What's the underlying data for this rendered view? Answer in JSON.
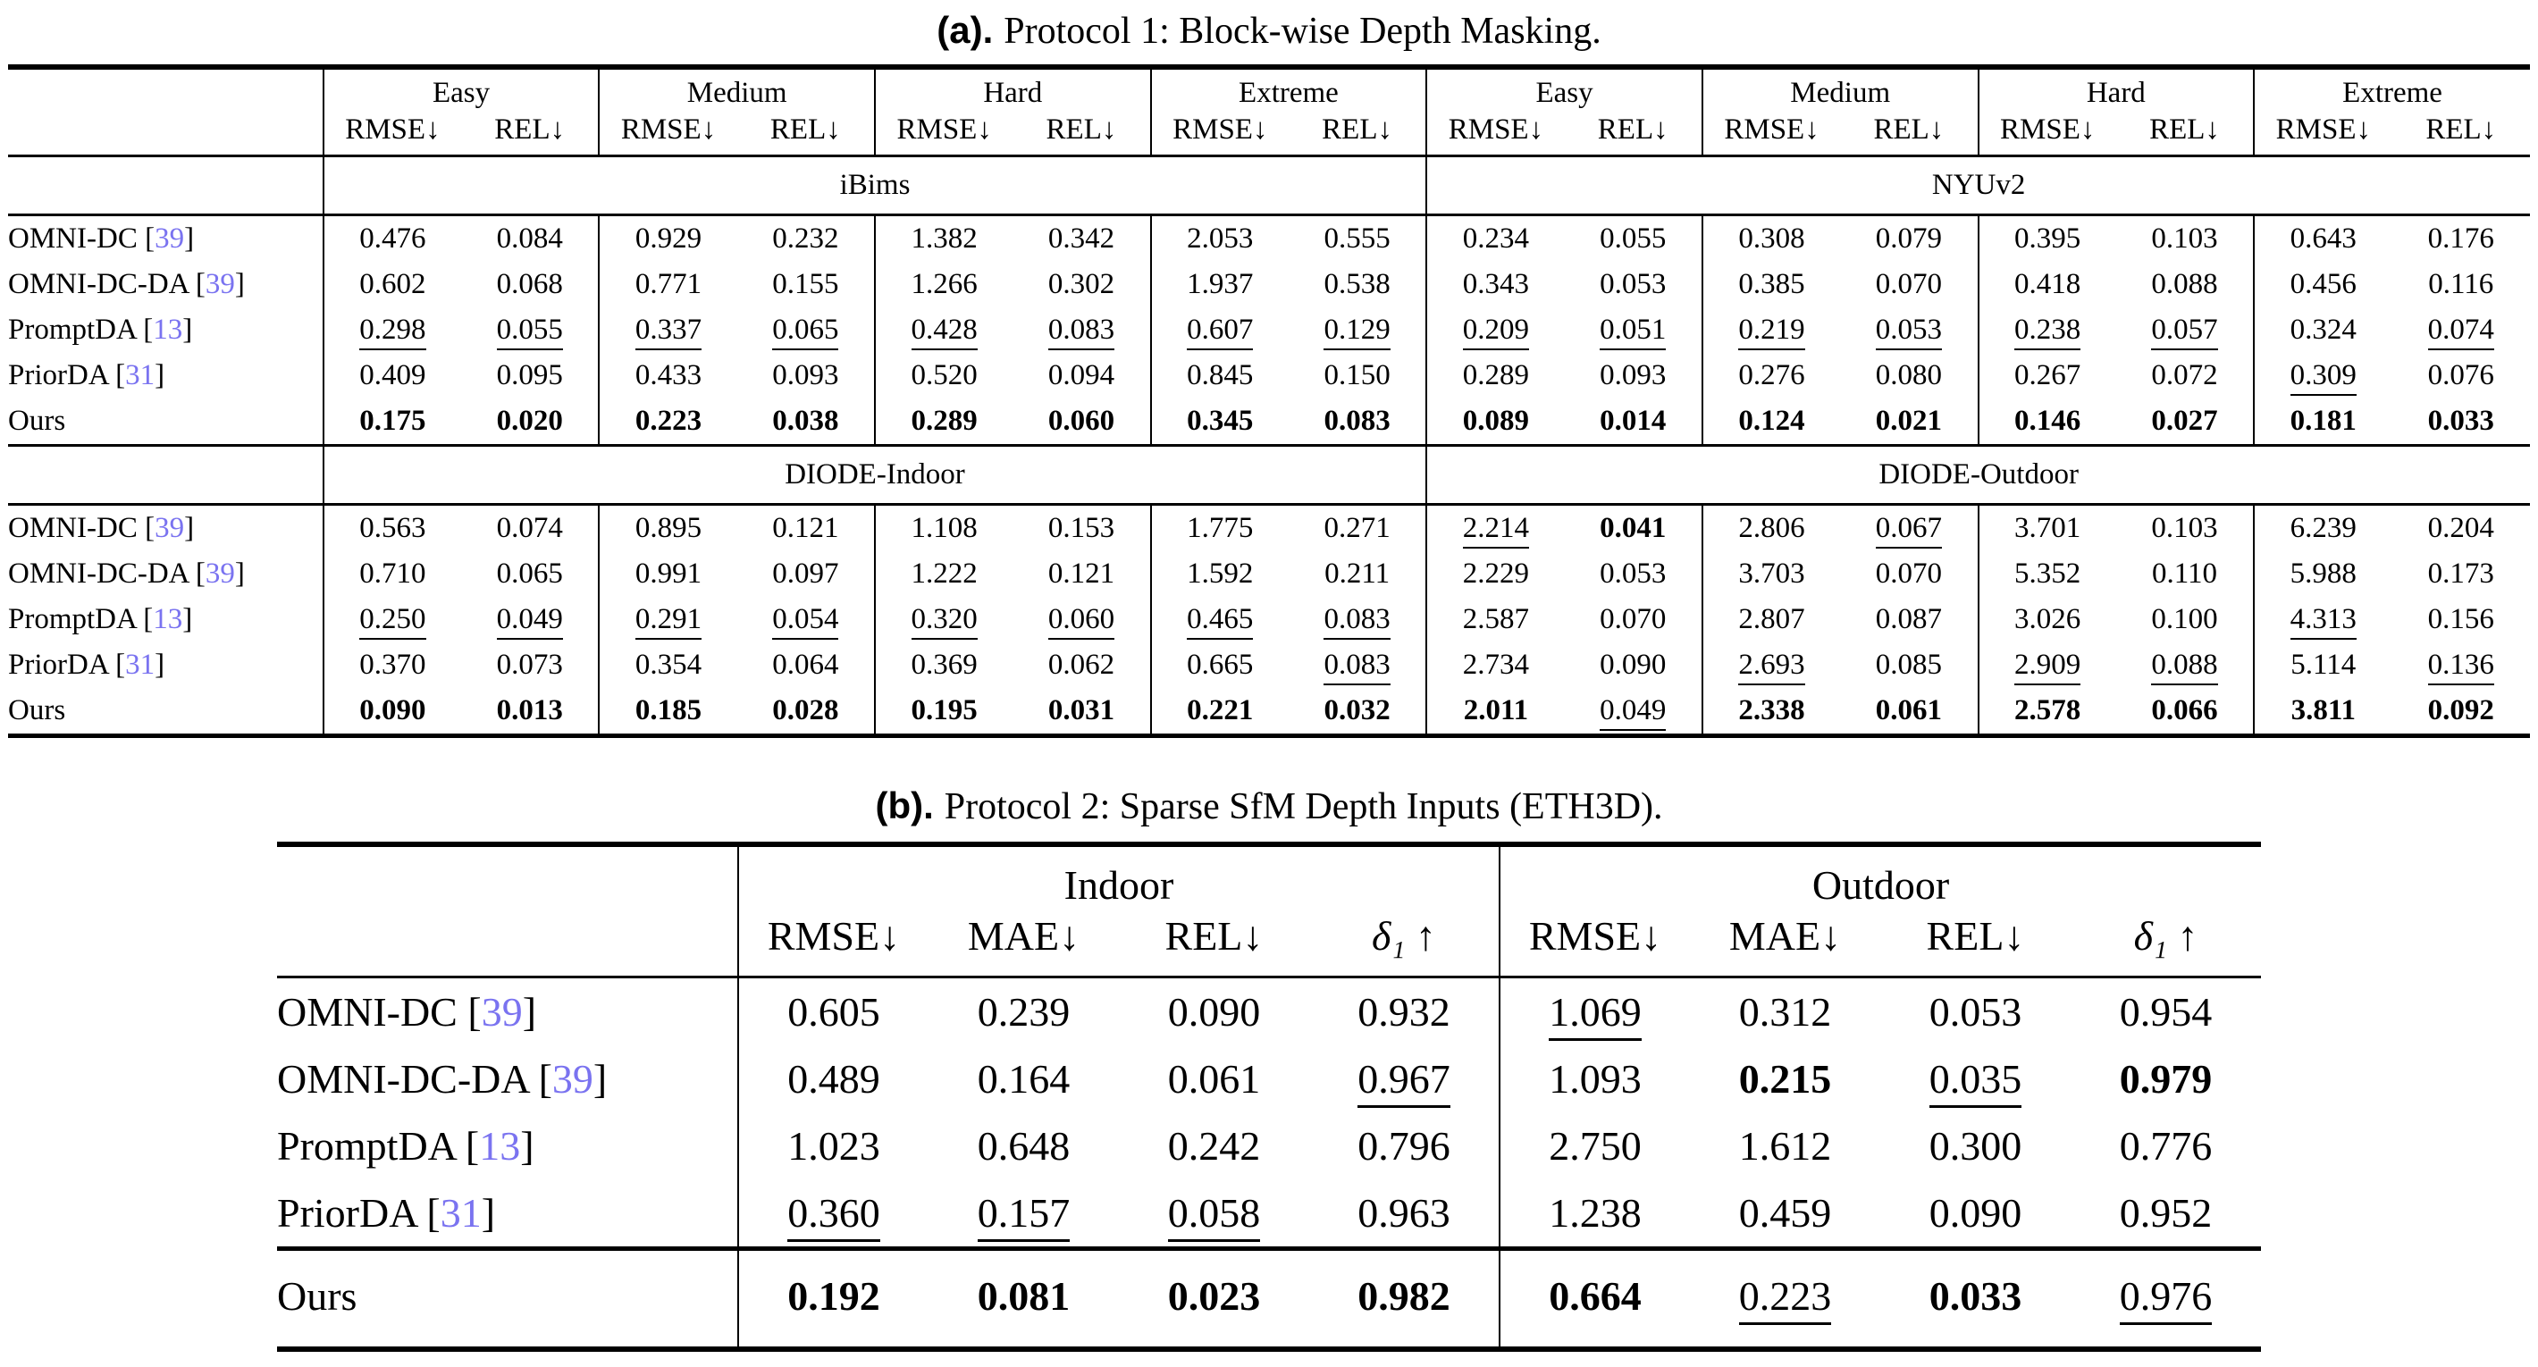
{
  "page": {
    "background": "#ffffff",
    "text_color": "#000000",
    "citation_color": "#7a73f0"
  },
  "emphasis_key": {
    "n": "normal",
    "b": "bold (best result)",
    "u": "underline (second-best result)"
  },
  "table_a": {
    "title": {
      "label": "(a).",
      "text": "Protocol 1: Block-wise Depth Masking."
    },
    "col_groups": [
      "Easy",
      "Medium",
      "Hard",
      "Extreme",
      "Easy",
      "Medium",
      "Hard",
      "Extreme"
    ],
    "metric_pair": [
      "RMSE↓",
      "REL↓"
    ],
    "sections": [
      {
        "bands": [
          "iBims",
          "NYUv2"
        ],
        "rows": [
          {
            "method": "OMNI-DC",
            "cite": "39",
            "cells": [
              [
                "0.476",
                "n"
              ],
              [
                "0.084",
                "n"
              ],
              [
                "0.929",
                "n"
              ],
              [
                "0.232",
                "n"
              ],
              [
                "1.382",
                "n"
              ],
              [
                "0.342",
                "n"
              ],
              [
                "2.053",
                "n"
              ],
              [
                "0.555",
                "n"
              ],
              [
                "0.234",
                "n"
              ],
              [
                "0.055",
                "n"
              ],
              [
                "0.308",
                "n"
              ],
              [
                "0.079",
                "n"
              ],
              [
                "0.395",
                "n"
              ],
              [
                "0.103",
                "n"
              ],
              [
                "0.643",
                "n"
              ],
              [
                "0.176",
                "n"
              ]
            ]
          },
          {
            "method": "OMNI-DC-DA",
            "cite": "39",
            "cells": [
              [
                "0.602",
                "n"
              ],
              [
                "0.068",
                "n"
              ],
              [
                "0.771",
                "n"
              ],
              [
                "0.155",
                "n"
              ],
              [
                "1.266",
                "n"
              ],
              [
                "0.302",
                "n"
              ],
              [
                "1.937",
                "n"
              ],
              [
                "0.538",
                "n"
              ],
              [
                "0.343",
                "n"
              ],
              [
                "0.053",
                "n"
              ],
              [
                "0.385",
                "n"
              ],
              [
                "0.070",
                "n"
              ],
              [
                "0.418",
                "n"
              ],
              [
                "0.088",
                "n"
              ],
              [
                "0.456",
                "n"
              ],
              [
                "0.116",
                "n"
              ]
            ]
          },
          {
            "method": "PromptDA",
            "cite": "13",
            "cells": [
              [
                "0.298",
                "u"
              ],
              [
                "0.055",
                "u"
              ],
              [
                "0.337",
                "u"
              ],
              [
                "0.065",
                "u"
              ],
              [
                "0.428",
                "u"
              ],
              [
                "0.083",
                "u"
              ],
              [
                "0.607",
                "u"
              ],
              [
                "0.129",
                "u"
              ],
              [
                "0.209",
                "u"
              ],
              [
                "0.051",
                "u"
              ],
              [
                "0.219",
                "u"
              ],
              [
                "0.053",
                "u"
              ],
              [
                "0.238",
                "u"
              ],
              [
                "0.057",
                "u"
              ],
              [
                "0.324",
                "n"
              ],
              [
                "0.074",
                "u"
              ]
            ]
          },
          {
            "method": "PriorDA",
            "cite": "31",
            "cells": [
              [
                "0.409",
                "n"
              ],
              [
                "0.095",
                "n"
              ],
              [
                "0.433",
                "n"
              ],
              [
                "0.093",
                "n"
              ],
              [
                "0.520",
                "n"
              ],
              [
                "0.094",
                "n"
              ],
              [
                "0.845",
                "n"
              ],
              [
                "0.150",
                "n"
              ],
              [
                "0.289",
                "n"
              ],
              [
                "0.093",
                "n"
              ],
              [
                "0.276",
                "n"
              ],
              [
                "0.080",
                "n"
              ],
              [
                "0.267",
                "n"
              ],
              [
                "0.072",
                "n"
              ],
              [
                "0.309",
                "u"
              ],
              [
                "0.076",
                "n"
              ]
            ]
          },
          {
            "method": "Ours",
            "cite": null,
            "cells": [
              [
                "0.175",
                "b"
              ],
              [
                "0.020",
                "b"
              ],
              [
                "0.223",
                "b"
              ],
              [
                "0.038",
                "b"
              ],
              [
                "0.289",
                "b"
              ],
              [
                "0.060",
                "b"
              ],
              [
                "0.345",
                "b"
              ],
              [
                "0.083",
                "b"
              ],
              [
                "0.089",
                "b"
              ],
              [
                "0.014",
                "b"
              ],
              [
                "0.124",
                "b"
              ],
              [
                "0.021",
                "b"
              ],
              [
                "0.146",
                "b"
              ],
              [
                "0.027",
                "b"
              ],
              [
                "0.181",
                "b"
              ],
              [
                "0.033",
                "b"
              ]
            ]
          }
        ]
      },
      {
        "bands": [
          "DIODE-Indoor",
          "DIODE-Outdoor"
        ],
        "rows": [
          {
            "method": "OMNI-DC",
            "cite": "39",
            "cells": [
              [
                "0.563",
                "n"
              ],
              [
                "0.074",
                "n"
              ],
              [
                "0.895",
                "n"
              ],
              [
                "0.121",
                "n"
              ],
              [
                "1.108",
                "n"
              ],
              [
                "0.153",
                "n"
              ],
              [
                "1.775",
                "n"
              ],
              [
                "0.271",
                "n"
              ],
              [
                "2.214",
                "u"
              ],
              [
                "0.041",
                "b"
              ],
              [
                "2.806",
                "n"
              ],
              [
                "0.067",
                "u"
              ],
              [
                "3.701",
                "n"
              ],
              [
                "0.103",
                "n"
              ],
              [
                "6.239",
                "n"
              ],
              [
                "0.204",
                "n"
              ]
            ]
          },
          {
            "method": "OMNI-DC-DA",
            "cite": "39",
            "cells": [
              [
                "0.710",
                "n"
              ],
              [
                "0.065",
                "n"
              ],
              [
                "0.991",
                "n"
              ],
              [
                "0.097",
                "n"
              ],
              [
                "1.222",
                "n"
              ],
              [
                "0.121",
                "n"
              ],
              [
                "1.592",
                "n"
              ],
              [
                "0.211",
                "n"
              ],
              [
                "2.229",
                "n"
              ],
              [
                "0.053",
                "n"
              ],
              [
                "3.703",
                "n"
              ],
              [
                "0.070",
                "n"
              ],
              [
                "5.352",
                "n"
              ],
              [
                "0.110",
                "n"
              ],
              [
                "5.988",
                "n"
              ],
              [
                "0.173",
                "n"
              ]
            ]
          },
          {
            "method": "PromptDA",
            "cite": "13",
            "cells": [
              [
                "0.250",
                "u"
              ],
              [
                "0.049",
                "u"
              ],
              [
                "0.291",
                "u"
              ],
              [
                "0.054",
                "u"
              ],
              [
                "0.320",
                "u"
              ],
              [
                "0.060",
                "u"
              ],
              [
                "0.465",
                "u"
              ],
              [
                "0.083",
                "u"
              ],
              [
                "2.587",
                "n"
              ],
              [
                "0.070",
                "n"
              ],
              [
                "2.807",
                "n"
              ],
              [
                "0.087",
                "n"
              ],
              [
                "3.026",
                "n"
              ],
              [
                "0.100",
                "n"
              ],
              [
                "4.313",
                "u"
              ],
              [
                "0.156",
                "n"
              ]
            ]
          },
          {
            "method": "PriorDA",
            "cite": "31",
            "cells": [
              [
                "0.370",
                "n"
              ],
              [
                "0.073",
                "n"
              ],
              [
                "0.354",
                "n"
              ],
              [
                "0.064",
                "n"
              ],
              [
                "0.369",
                "n"
              ],
              [
                "0.062",
                "n"
              ],
              [
                "0.665",
                "n"
              ],
              [
                "0.083",
                "u"
              ],
              [
                "2.734",
                "n"
              ],
              [
                "0.090",
                "n"
              ],
              [
                "2.693",
                "u"
              ],
              [
                "0.085",
                "n"
              ],
              [
                "2.909",
                "u"
              ],
              [
                "0.088",
                "u"
              ],
              [
                "5.114",
                "n"
              ],
              [
                "0.136",
                "u"
              ]
            ]
          },
          {
            "method": "Ours",
            "cite": null,
            "cells": [
              [
                "0.090",
                "b"
              ],
              [
                "0.013",
                "b"
              ],
              [
                "0.185",
                "b"
              ],
              [
                "0.028",
                "b"
              ],
              [
                "0.195",
                "b"
              ],
              [
                "0.031",
                "b"
              ],
              [
                "0.221",
                "b"
              ],
              [
                "0.032",
                "b"
              ],
              [
                "2.011",
                "b"
              ],
              [
                "0.049",
                "u"
              ],
              [
                "2.338",
                "b"
              ],
              [
                "0.061",
                "b"
              ],
              [
                "2.578",
                "b"
              ],
              [
                "0.066",
                "b"
              ],
              [
                "3.811",
                "b"
              ],
              [
                "0.092",
                "b"
              ]
            ]
          }
        ]
      }
    ]
  },
  "table_b": {
    "title": {
      "label": "(b).",
      "text": "Protocol 2: Sparse SfM Depth Inputs (ETH3D)."
    },
    "col_groups": [
      "Indoor",
      "Outdoor"
    ],
    "metrics": [
      "RMSE↓",
      "MAE↓",
      "REL↓",
      "δ₁ ↑"
    ],
    "rows": [
      {
        "method": "OMNI-DC",
        "cite": "39",
        "cells": [
          [
            "0.605",
            "n"
          ],
          [
            "0.239",
            "n"
          ],
          [
            "0.090",
            "n"
          ],
          [
            "0.932",
            "n"
          ],
          [
            "1.069",
            "u"
          ],
          [
            "0.312",
            "n"
          ],
          [
            "0.053",
            "n"
          ],
          [
            "0.954",
            "n"
          ]
        ]
      },
      {
        "method": "OMNI-DC-DA",
        "cite": "39",
        "cells": [
          [
            "0.489",
            "n"
          ],
          [
            "0.164",
            "n"
          ],
          [
            "0.061",
            "n"
          ],
          [
            "0.967",
            "u"
          ],
          [
            "1.093",
            "n"
          ],
          [
            "0.215",
            "b"
          ],
          [
            "0.035",
            "u"
          ],
          [
            "0.979",
            "b"
          ]
        ]
      },
      {
        "method": "PromptDA",
        "cite": "13",
        "cells": [
          [
            "1.023",
            "n"
          ],
          [
            "0.648",
            "n"
          ],
          [
            "0.242",
            "n"
          ],
          [
            "0.796",
            "n"
          ],
          [
            "2.750",
            "n"
          ],
          [
            "1.612",
            "n"
          ],
          [
            "0.300",
            "n"
          ],
          [
            "0.776",
            "n"
          ]
        ]
      },
      {
        "method": "PriorDA",
        "cite": "31",
        "cells": [
          [
            "0.360",
            "u"
          ],
          [
            "0.157",
            "u"
          ],
          [
            "0.058",
            "u"
          ],
          [
            "0.963",
            "n"
          ],
          [
            "1.238",
            "n"
          ],
          [
            "0.459",
            "n"
          ],
          [
            "0.090",
            "n"
          ],
          [
            "0.952",
            "n"
          ]
        ]
      }
    ],
    "ours_row": {
      "method": "Ours",
      "cite": null,
      "cells": [
        [
          "0.192",
          "b"
        ],
        [
          "0.081",
          "b"
        ],
        [
          "0.023",
          "b"
        ],
        [
          "0.982",
          "b"
        ],
        [
          "0.664",
          "b"
        ],
        [
          "0.223",
          "u"
        ],
        [
          "0.033",
          "b"
        ],
        [
          "0.976",
          "u"
        ]
      ]
    }
  }
}
